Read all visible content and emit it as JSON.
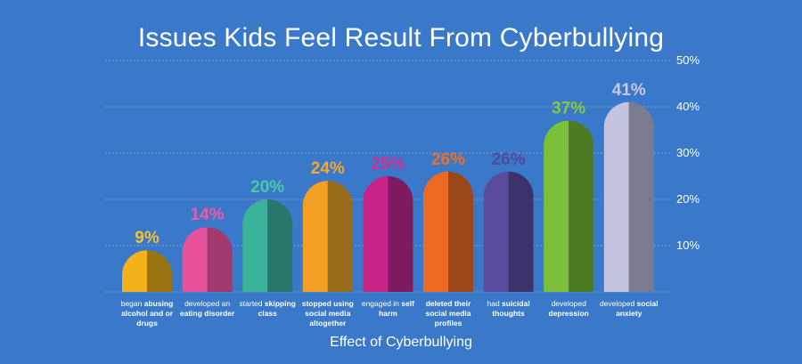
{
  "chart_data": {
    "type": "bar",
    "title": "Issues Kids Feel Result From Cyberbullying",
    "xlabel": "Effect of Cyberbullying",
    "ylabel": "",
    "ylim": [
      0,
      50
    ],
    "y_ticks": [
      "10%",
      "20%",
      "30%",
      "40%",
      "50%"
    ],
    "y_tick_values": [
      10,
      20,
      30,
      40,
      50
    ],
    "y_axis_side": "right",
    "grid": "dotted horizontal",
    "legend": "none",
    "categories": [
      "began abusing alcohol and or drugs",
      "developed an eating disorder",
      "started skipping class",
      "stopped using social media altogether",
      "engaged in self harm",
      "deleted their social media profiles",
      "had suicidal thoughts",
      "developed depression",
      "developed social anxiety"
    ],
    "category_label_parts": [
      [
        {
          "t": "began ",
          "b": false
        },
        {
          "t": "abusing alcohol and or drugs",
          "b": true
        }
      ],
      [
        {
          "t": "developed an ",
          "b": false
        },
        {
          "t": "eating disorder",
          "b": true
        }
      ],
      [
        {
          "t": "started ",
          "b": false
        },
        {
          "t": "skipping class",
          "b": true
        }
      ],
      [
        {
          "t": "stopped using social media altogether",
          "b": true
        }
      ],
      [
        {
          "t": "engaged in ",
          "b": false
        },
        {
          "t": "self harm",
          "b": true
        }
      ],
      [
        {
          "t": "deleted their social media profiles",
          "b": true
        }
      ],
      [
        {
          "t": "had ",
          "b": false
        },
        {
          "t": "suicidal thoughts",
          "b": true
        }
      ],
      [
        {
          "t": "developed ",
          "b": false
        },
        {
          "t": "depression",
          "b": true
        }
      ],
      [
        {
          "t": "developed ",
          "b": false
        },
        {
          "t": "social anxiety",
          "b": true
        }
      ]
    ],
    "values": [
      9,
      14,
      20,
      24,
      25,
      26,
      26,
      37,
      41
    ],
    "value_labels": [
      "9%",
      "14%",
      "20%",
      "24%",
      "25%",
      "26%",
      "26%",
      "37%",
      "41%"
    ],
    "colors": [
      {
        "light": "#f2b21b",
        "dark": "#9a7311",
        "label": "#f0c23a"
      },
      {
        "light": "#e8519c",
        "dark": "#a33a6e",
        "label": "#ee5aa5"
      },
      {
        "light": "#3bb39a",
        "dark": "#27786a",
        "label": "#4ac9a6"
      },
      {
        "light": "#f1a024",
        "dark": "#9a6a1b",
        "label": "#f5a82e"
      },
      {
        "light": "#c82488",
        "dark": "#7f1960",
        "label": "#cf2e90"
      },
      {
        "light": "#ee6a22",
        "dark": "#9c4718",
        "label": "#f07028"
      },
      {
        "light": "#5a4b9c",
        "dark": "#3a3268",
        "label": "#55479a"
      },
      {
        "light": "#7cc03a",
        "dark": "#4f7a24",
        "label": "#84c93f"
      },
      {
        "light": "#c4c4e0",
        "dark": "#7a7a90",
        "label": "#c8c8e4"
      }
    ]
  }
}
